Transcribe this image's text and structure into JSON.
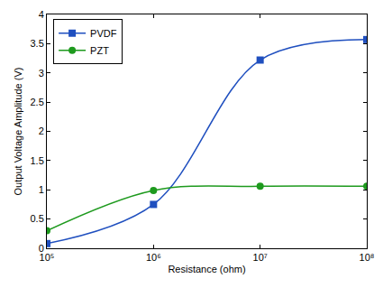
{
  "chart_data": {
    "type": "line",
    "x_label": "Resistance (ohm)",
    "y_label": "Output Voltage Amplitude (V)",
    "log": "x",
    "grid": false,
    "legend": "top-left",
    "xlim": [
      100000,
      100000000
    ],
    "xticks": [
      {
        "value": 100000,
        "label": "10⁵"
      },
      {
        "value": 1000000,
        "label": "10⁶"
      },
      {
        "value": 10000000,
        "label": "10⁷"
      },
      {
        "value": 100000000,
        "label": "10⁸"
      }
    ],
    "ylim": [
      0,
      4
    ],
    "yticks": [
      0,
      0.5,
      1,
      1.5,
      2,
      2.5,
      3,
      3.5,
      4
    ],
    "x": [
      100000,
      1000000,
      10000000,
      100000000
    ],
    "series": [
      {
        "name": "PVDF",
        "color": "#1f4fbf",
        "marker": "square",
        "line_style": "solid",
        "values": [
          0.08,
          0.75,
          3.22,
          3.57
        ]
      },
      {
        "name": "PZT",
        "color": "#1e9a1e",
        "marker": "circle",
        "line_style": "solid",
        "values": [
          0.3,
          0.99,
          1.06,
          1.06
        ]
      }
    ]
  }
}
